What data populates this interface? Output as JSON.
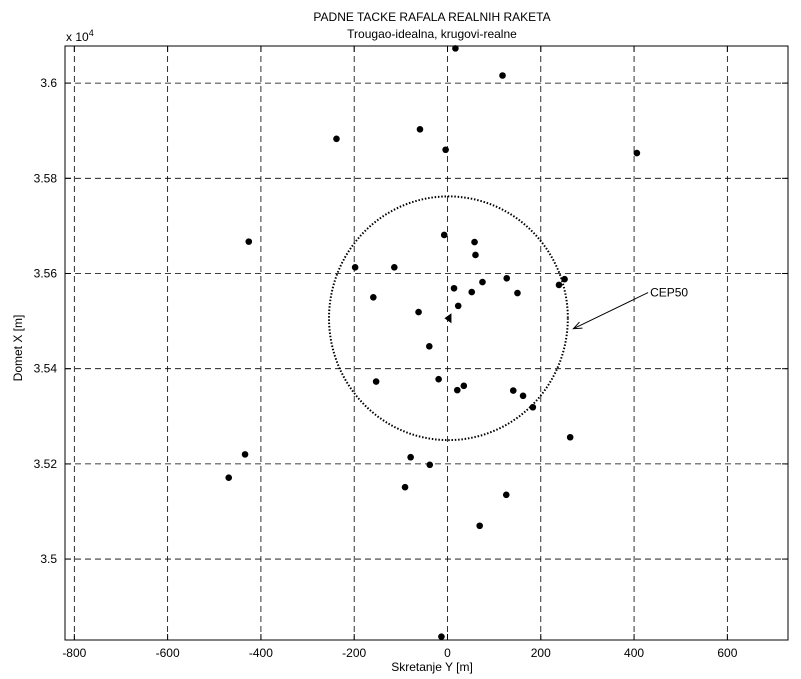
{
  "chart_data": {
    "type": "scatter",
    "title": "PADNE TACKE RAFALA REALNIH RAKETA",
    "subtitle": "Trougao-idealna, krugovi-realne",
    "xlabel": "Skretanje Y [m]",
    "ylabel": "Domet X [m]",
    "y_exponent_label": "x 10",
    "y_exponent_power": "4",
    "xlim": [
      -820,
      730
    ],
    "ylim": [
      34830,
      36078
    ],
    "grid": true,
    "x_ticks": [
      -800,
      -600,
      -400,
      -200,
      0,
      200,
      400,
      600
    ],
    "x_tick_labels": [
      "-800",
      "-600",
      "-400",
      "-200",
      "0",
      "200",
      "400",
      "600"
    ],
    "y_ticks": [
      35000,
      35200,
      35400,
      35600,
      35800,
      36000
    ],
    "y_tick_labels": [
      "3.5",
      "3.52",
      "3.54",
      "3.56",
      "3.58",
      "3.6"
    ],
    "series": [
      {
        "marker": "filled-circle",
        "points": [
          [
            17,
            36073
          ],
          [
            118,
            36016
          ],
          [
            -238,
            35883
          ],
          [
            -59,
            35903
          ],
          [
            -4,
            35860
          ],
          [
            406,
            35853
          ],
          [
            -426,
            35667
          ],
          [
            -7,
            35681
          ],
          [
            58,
            35666
          ],
          [
            60,
            35639
          ],
          [
            -198,
            35613
          ],
          [
            -114,
            35613
          ],
          [
            -159,
            35550
          ],
          [
            251,
            35588
          ],
          [
            239,
            35576
          ],
          [
            127,
            35590
          ],
          [
            75,
            35582
          ],
          [
            14,
            35569
          ],
          [
            52,
            35561
          ],
          [
            150,
            35559
          ],
          [
            23,
            35532
          ],
          [
            -62,
            35519
          ],
          [
            -39,
            35447
          ],
          [
            -19,
            35378
          ],
          [
            35,
            35364
          ],
          [
            21,
            35355
          ],
          [
            -153,
            35373
          ],
          [
            141,
            35354
          ],
          [
            162,
            35343
          ],
          [
            183,
            35319
          ],
          [
            263,
            35256
          ],
          [
            -434,
            35220
          ],
          [
            -469,
            35171
          ],
          [
            -79,
            35214
          ],
          [
            -38,
            35198
          ],
          [
            -91,
            35151
          ],
          [
            126,
            35135
          ],
          [
            69,
            35070
          ],
          [
            -13,
            34837
          ]
        ]
      },
      {
        "marker": "triangle-left",
        "points": [
          [
            2,
            35506
          ]
        ]
      }
    ],
    "circle": {
      "center": [
        2,
        35506
      ],
      "radius": 256,
      "style": "dotted",
      "label": "CEP50"
    },
    "annotation": {
      "text": "CEP50",
      "arrow_from": [
        430,
        35560
      ],
      "arrow_to": [
        270,
        35484
      ]
    }
  }
}
